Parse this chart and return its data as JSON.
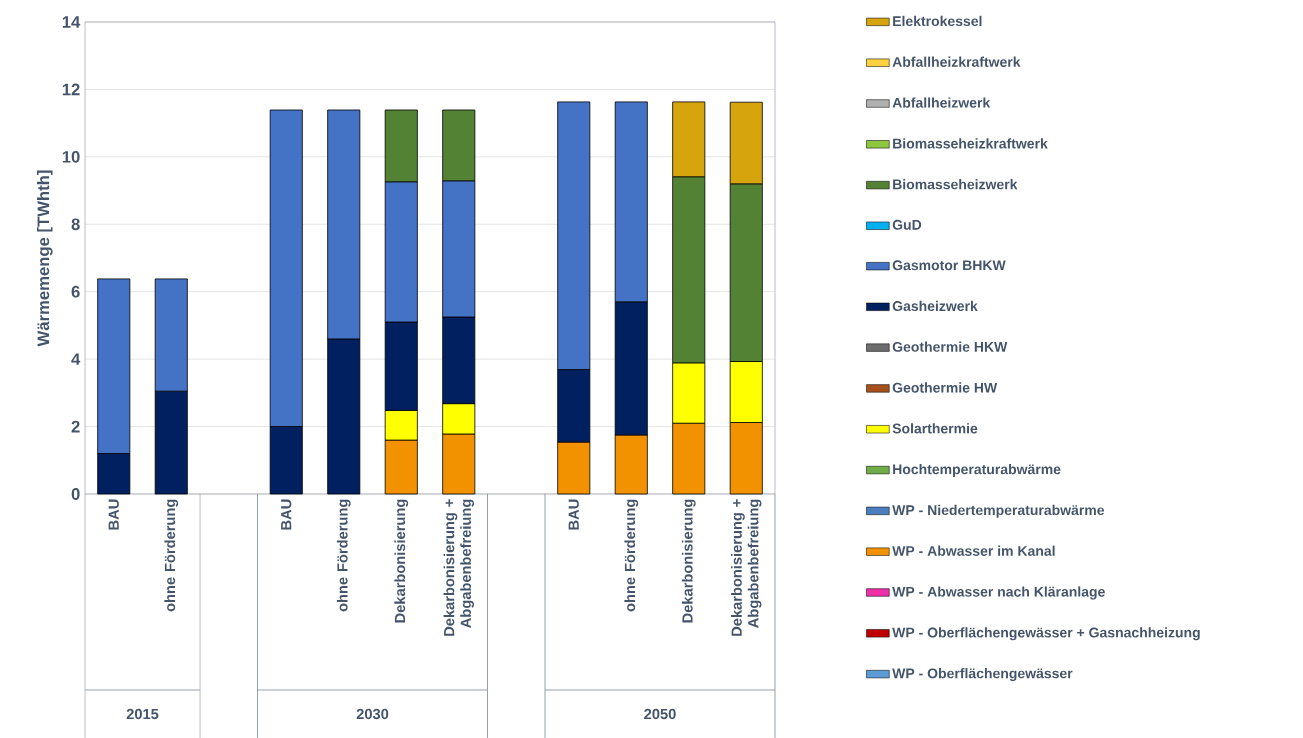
{
  "chart_data": {
    "type": "bar",
    "stacked": true,
    "ylabel": "Wärmemenge [TWhth]",
    "categories": [
      "BAU",
      "ohne Förderung",
      null,
      "BAU",
      "ohne Förderung",
      "Dekarbonisierung",
      "Dekarbonisierung + Abgabenbefreiung",
      null,
      "BAU",
      "ohne Förderung",
      "Dekarbonisierung",
      "Dekarbonisierung + Abgabenbefreiung"
    ],
    "annotations": [
      "2015",
      "2030",
      "2050"
    ],
    "ylim": [
      0,
      14
    ],
    "yticks": [
      0,
      2,
      4,
      6,
      8,
      10,
      12,
      14
    ],
    "grid": "y",
    "legend": "right",
    "series": [
      {
        "name": "WP - Oberflächengewässer",
        "color": "#5b9bd5",
        "values": [
          null,
          null,
          null,
          null,
          null,
          null,
          null,
          null,
          null,
          null,
          null,
          null
        ]
      },
      {
        "name": "WP - Oberflächengewässer + Gasnachheizung",
        "color": "#c00000",
        "values": [
          null,
          null,
          null,
          null,
          null,
          null,
          null,
          null,
          null,
          null,
          null,
          null
        ]
      },
      {
        "name": "WP - Abwasser nach Kläranlage",
        "color": "#ee2fa8",
        "values": [
          null,
          null,
          null,
          null,
          null,
          null,
          null,
          null,
          null,
          null,
          null,
          null
        ]
      },
      {
        "name": "WP - Abwasser im Kanal",
        "color": "#f39200",
        "values": [
          null,
          null,
          null,
          null,
          null,
          1.6,
          1.78,
          null,
          1.54,
          1.75,
          2.1,
          2.12
        ]
      },
      {
        "name": "WP - Niedertemperaturabwärme",
        "color": "#4a7ebf",
        "values": [
          null,
          null,
          null,
          null,
          null,
          null,
          null,
          null,
          null,
          null,
          null,
          null
        ]
      },
      {
        "name": "Hochtemperaturabwärme",
        "color": "#70ad47",
        "values": [
          null,
          null,
          null,
          null,
          null,
          null,
          null,
          null,
          null,
          null,
          null,
          null
        ]
      },
      {
        "name": "Solarthermie",
        "color": "#ffff00",
        "values": [
          null,
          null,
          null,
          null,
          null,
          0.88,
          0.9,
          null,
          null,
          null,
          1.79,
          1.81
        ]
      },
      {
        "name": "Geothermie HW",
        "color": "#a5511b",
        "values": [
          null,
          null,
          null,
          null,
          null,
          null,
          null,
          null,
          null,
          null,
          null,
          null
        ]
      },
      {
        "name": "Geothermie HKW",
        "color": "#6d6d6d",
        "values": [
          null,
          null,
          null,
          null,
          null,
          null,
          null,
          null,
          null,
          null,
          null,
          null
        ]
      },
      {
        "name": "Gasheizwerk",
        "color": "#002060",
        "values": [
          1.2,
          3.05,
          null,
          2.0,
          4.6,
          2.62,
          2.57,
          null,
          2.15,
          3.95,
          null,
          null
        ]
      },
      {
        "name": "Gasmotor BHKW",
        "color": "#4472c4",
        "values": [
          5.18,
          3.33,
          null,
          9.39,
          6.79,
          4.16,
          4.04,
          null,
          7.94,
          5.93,
          null,
          null
        ]
      },
      {
        "name": "GuD",
        "color": "#00b0f0",
        "values": [
          null,
          null,
          null,
          null,
          null,
          null,
          null,
          null,
          null,
          null,
          null,
          null
        ]
      },
      {
        "name": "Biomasseheizwerk",
        "color": "#548235",
        "values": [
          null,
          null,
          null,
          null,
          null,
          2.13,
          2.1,
          null,
          null,
          null,
          5.52,
          5.27
        ]
      },
      {
        "name": "Biomasseheizkraftwerk",
        "color": "#8dc63f",
        "values": [
          null,
          null,
          null,
          null,
          null,
          null,
          null,
          null,
          null,
          null,
          null,
          null
        ]
      },
      {
        "name": "Abfallheizwerk",
        "color": "#b0b0b0",
        "values": [
          null,
          null,
          null,
          null,
          null,
          null,
          null,
          null,
          null,
          null,
          null,
          null
        ]
      },
      {
        "name": "Abfallheizkraftwerk",
        "color": "#ffd23f",
        "values": [
          null,
          null,
          null,
          null,
          null,
          null,
          null,
          null,
          null,
          null,
          null,
          null
        ]
      },
      {
        "name": "Elektrokessel",
        "color": "#d6a40c",
        "values": [
          null,
          null,
          null,
          null,
          null,
          null,
          null,
          null,
          null,
          null,
          2.22,
          2.42
        ]
      }
    ]
  }
}
